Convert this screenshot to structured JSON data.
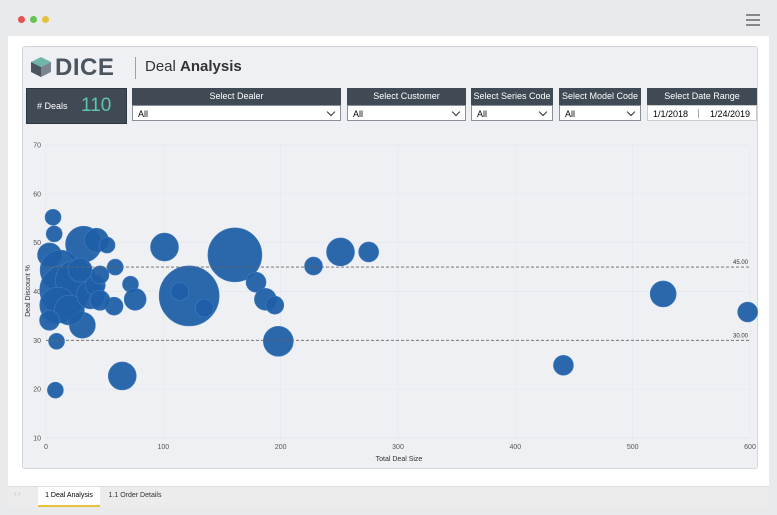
{
  "header": {
    "logo": "DICE",
    "title_prefix": "Deal",
    "title": "Analysis"
  },
  "kpi": {
    "label": "# Deals",
    "value": 110
  },
  "filters": [
    {
      "label": "Select Dealer",
      "value": "All"
    },
    {
      "label": "Select Customer",
      "value": "All"
    },
    {
      "label": "Select Series Code",
      "value": "All"
    },
    {
      "label": "Select Model Code",
      "value": "All"
    },
    {
      "label": "Select Date Range",
      "from": "1/1/2018",
      "to": "1/24/2019"
    }
  ],
  "tabs": [
    "1 Deal Analysis",
    "1.1 Order Details"
  ],
  "chart_data": {
    "type": "bubble",
    "x_label": "Total Deal Size",
    "y_label": "Deal Discount %",
    "color": "#1f5fa6",
    "x": [
      6,
      7,
      8,
      9,
      32,
      43,
      52,
      101,
      161,
      122,
      114,
      135,
      59,
      72,
      76,
      58,
      65,
      31,
      179,
      187,
      195,
      198,
      228,
      251,
      275,
      441,
      526,
      598,
      3,
      12,
      16,
      25,
      10,
      20,
      38,
      42,
      46,
      3,
      29,
      46
    ],
    "y": [
      55.2,
      51.8,
      19.8,
      29.8,
      49.7,
      50.5,
      49.5,
      49.1,
      47.5,
      39.1,
      40,
      36.6,
      45,
      41.5,
      38.4,
      37,
      22.7,
      33.1,
      41.9,
      38.4,
      37.2,
      29.8,
      45.2,
      48.1,
      48.1,
      24.9,
      39.5,
      35.8,
      47.5,
      44.4,
      40.3,
      42.3,
      37.2,
      36.2,
      39.3,
      41.3,
      38.2,
      34.1,
      44.4,
      43.4
    ],
    "sizes": [
      8,
      8,
      8,
      8,
      18,
      12,
      8,
      14,
      27,
      30,
      9,
      9,
      8,
      8,
      11,
      9,
      14,
      13,
      10,
      11,
      9,
      15,
      9,
      14,
      10,
      10,
      13,
      10,
      12,
      20,
      25,
      20,
      18,
      15,
      14,
      10,
      10,
      10,
      12,
      9
    ],
    "xlim": [
      0,
      600
    ],
    "ylim": [
      10,
      70
    ],
    "xticks": [
      0,
      100,
      200,
      300,
      400,
      500,
      600
    ],
    "yticks": [
      10,
      20,
      30,
      40,
      50,
      60,
      70
    ],
    "grid": true,
    "reference_lines": [
      {
        "value": 45,
        "label": "45.00"
      },
      {
        "value": 30,
        "label": "30.00"
      }
    ]
  }
}
